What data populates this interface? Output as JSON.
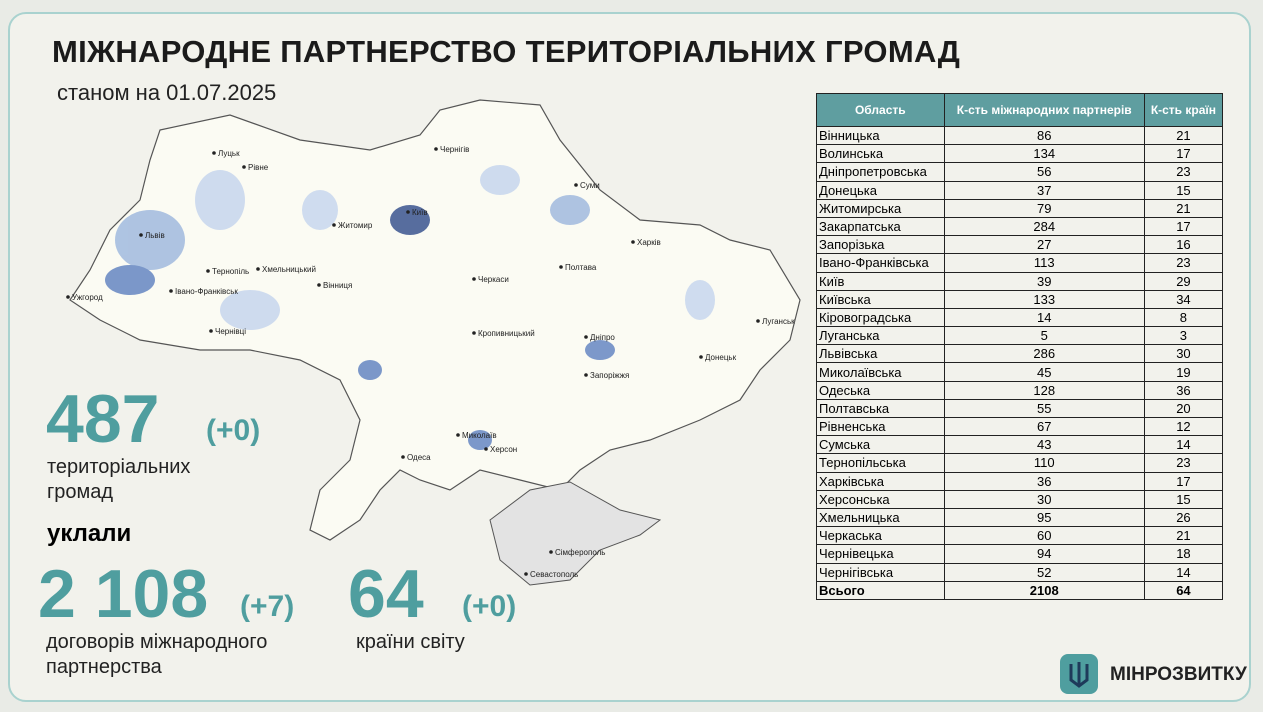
{
  "header": {
    "title": "МІЖНАРОДНЕ ПАРТНЕРСТВО ТЕРИТОРІАЛЬНИХ ГРОМАД",
    "subtitle": "станом на 01.07.2025"
  },
  "stats": {
    "communities": {
      "value": "487",
      "change": "(+0)",
      "label_line1": "територіальних",
      "label_line2": "громад"
    },
    "verb": "уклали",
    "agreements": {
      "value": "2 108",
      "change": "(+7)",
      "label_line1": "договорів міжнародного",
      "label_line2": "партнерства"
    },
    "countries": {
      "value": "64",
      "change": "(+0)",
      "label_line1": "країни світу"
    }
  },
  "table": {
    "header": [
      "Область",
      "К-сть міжнародних партнерів",
      "К-сть країн"
    ],
    "rows": [
      [
        "Вінницька",
        86,
        21
      ],
      [
        "Волинська",
        134,
        17
      ],
      [
        "Дніпропетровська",
        56,
        23
      ],
      [
        "Донецька",
        37,
        15
      ],
      [
        "Житомирська",
        79,
        21
      ],
      [
        "Закарпатська",
        284,
        17
      ],
      [
        "Запорізька",
        27,
        16
      ],
      [
        "Івано-Франківська",
        113,
        23
      ],
      [
        "Київ",
        39,
        29
      ],
      [
        "Київська",
        133,
        34
      ],
      [
        "Кіровоградська",
        14,
        8
      ],
      [
        "Луганська",
        5,
        3
      ],
      [
        "Львівська",
        286,
        30
      ],
      [
        "Миколаївська",
        45,
        19
      ],
      [
        "Одеська",
        128,
        36
      ],
      [
        "Полтавська",
        55,
        20
      ],
      [
        "Рівненська",
        67,
        12
      ],
      [
        "Сумська",
        43,
        14
      ],
      [
        "Тернопільська",
        110,
        23
      ],
      [
        "Харківська",
        36,
        17
      ],
      [
        "Херсонська",
        30,
        15
      ],
      [
        "Хмельницька",
        95,
        26
      ],
      [
        "Черкаська",
        60,
        21
      ],
      [
        "Чернівецька",
        94,
        18
      ],
      [
        "Чернігівська",
        52,
        14
      ]
    ],
    "total": [
      "Всього",
      2108,
      64
    ]
  },
  "map": {
    "cities": [
      "Чернігів",
      "Суми",
      "Луцьк",
      "Рівне",
      "Київ",
      "Житомир",
      "Харків",
      "Львів",
      "Тернопіль",
      "Хмельницький",
      "Полтава",
      "Ужгород",
      "Вінниця",
      "Луганськ",
      "Івано-Франківськ",
      "Черкаси",
      "Чернівці",
      "Кропивницький",
      "Дніпро",
      "Донецьк",
      "Запоріжжя",
      "Миколаїв",
      "Херсон",
      "Одеса",
      "Сімферополь",
      "Севастополь"
    ]
  },
  "logo": {
    "text": "МІНРОЗВИТКУ"
  }
}
